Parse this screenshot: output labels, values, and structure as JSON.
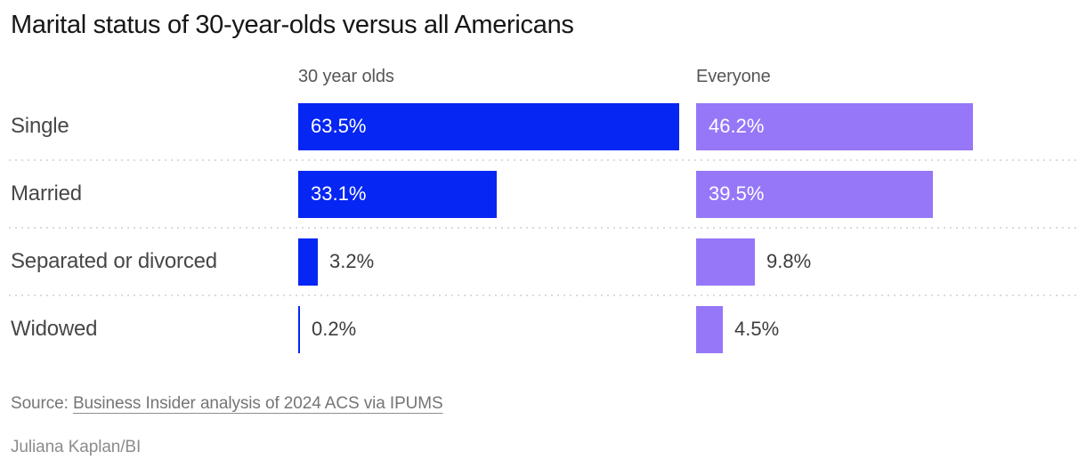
{
  "title": "Marital status of 30-year-olds versus all Americans",
  "chart_data": {
    "type": "bar",
    "orientation": "horizontal",
    "title": "Marital status of 30-year-olds versus all Americans",
    "categories": [
      "Single",
      "Married",
      "Separated or divorced",
      "Widowed"
    ],
    "series": [
      {
        "name": "30 year olds",
        "color": "#0626f3",
        "values": [
          63.5,
          33.1,
          3.2,
          0.2
        ]
      },
      {
        "name": "Everyone",
        "color": "#9577f8",
        "values": [
          46.2,
          39.5,
          9.8,
          4.5
        ]
      }
    ],
    "value_suffix": "%",
    "value_label_position": "inside bar when wide, outside right when narrow",
    "grid": "dotted horizontal separators between rows",
    "legend_position": "column headers above each bar group",
    "xlim": [
      0,
      66
    ]
  },
  "footer": {
    "source_prefix": "Source:",
    "source_link": "Business Insider analysis of 2024 ACS via IPUMS",
    "credit": "Juliana Kaplan/BI"
  }
}
